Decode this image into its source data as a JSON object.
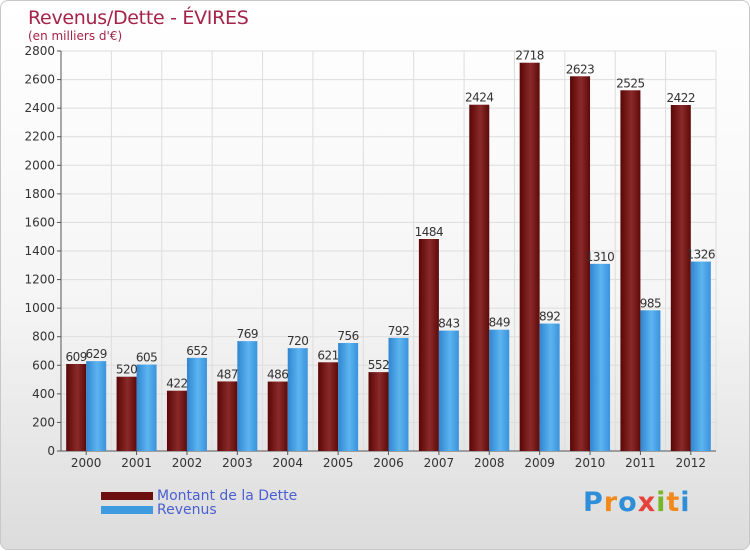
{
  "title": "Revenus/Dette - ÉVIRES",
  "subtitle": "(en milliers d'€)",
  "colors": {
    "dette": "#6e0f0f",
    "revenus": "#3f9be0",
    "title": "#a5234b",
    "legend_text": "#4a5fd0"
  },
  "legend": {
    "dette_label": "Montant de la Dette",
    "revenus_label": "Revenus"
  },
  "logo": {
    "text": "Proxiti"
  },
  "chart_data": {
    "type": "bar",
    "title": "Revenus/Dette - ÉVIRES",
    "subtitle": "(en milliers d'€)",
    "categories": [
      "2000",
      "2001",
      "2002",
      "2003",
      "2004",
      "2005",
      "2006",
      "2007",
      "2008",
      "2009",
      "2010",
      "2011",
      "2012"
    ],
    "series": [
      {
        "name": "Montant de la Dette",
        "values": [
          609,
          520,
          422,
          487,
          486,
          621,
          552,
          1484,
          2424,
          2718,
          2623,
          2525,
          2422
        ]
      },
      {
        "name": "Revenus",
        "values": [
          629,
          605,
          652,
          769,
          720,
          756,
          792,
          843,
          849,
          892,
          1310,
          985,
          1326
        ]
      }
    ],
    "ylim": [
      0,
      2800
    ],
    "yticks": [
      0,
      200,
      400,
      600,
      800,
      1000,
      1200,
      1400,
      1600,
      1800,
      2000,
      2200,
      2400,
      2600,
      2800
    ],
    "grid": true,
    "legend_position": "bottom-left"
  }
}
